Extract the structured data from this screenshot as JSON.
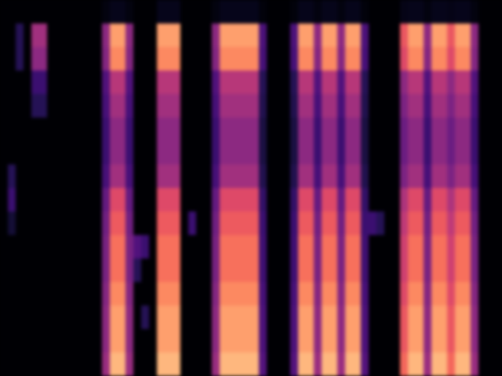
{
  "chart_data": {
    "type": "heatmap",
    "color": "magma",
    "tick_labels": false,
    "vlim": [
      0,
      1
    ],
    "values": [
      [
        0,
        0,
        0,
        0,
        0,
        0,
        0,
        0,
        0,
        0,
        0,
        0,
        0,
        0.03,
        0.05,
        0.05,
        0.03,
        0,
        0,
        0,
        0.05,
        0.05,
        0.05,
        0,
        0,
        0,
        0,
        0.03,
        0.05,
        0.05,
        0.05,
        0.05,
        0.05,
        0.02,
        0,
        0,
        0,
        0.02,
        0.05,
        0.05,
        0.03,
        0.05,
        0.05,
        0.03,
        0.05,
        0.05,
        0.02,
        0,
        0,
        0,
        0,
        0.04,
        0.05,
        0.05,
        0.03,
        0.05,
        0.05,
        0.04,
        0.05,
        0.05,
        0.03,
        0,
        0,
        0
      ],
      [
        0,
        0,
        0.15,
        0,
        0.45,
        0.45,
        0,
        0,
        0,
        0,
        0,
        0,
        0,
        0.4,
        0.8,
        0.8,
        0.4,
        0,
        0,
        0,
        0.8,
        0.8,
        0.8,
        0,
        0,
        0,
        0,
        0.4,
        0.8,
        0.8,
        0.8,
        0.8,
        0.8,
        0.24,
        0,
        0,
        0,
        0.24,
        0.8,
        0.8,
        0.4,
        0.8,
        0.8,
        0.4,
        0.8,
        0.8,
        0.24,
        0,
        0,
        0,
        0,
        0.64,
        0.8,
        0.8,
        0.4,
        0.8,
        0.8,
        0.64,
        0.8,
        0.8,
        0.4,
        0,
        0,
        0
      ],
      [
        0,
        0,
        0.15,
        0,
        0.4,
        0.4,
        0,
        0,
        0,
        0,
        0,
        0,
        0,
        0.38,
        0.75,
        0.75,
        0.38,
        0,
        0,
        0,
        0.75,
        0.75,
        0.75,
        0,
        0,
        0,
        0,
        0.38,
        0.75,
        0.75,
        0.75,
        0.75,
        0.75,
        0.23,
        0,
        0,
        0,
        0.23,
        0.75,
        0.75,
        0.38,
        0.75,
        0.75,
        0.38,
        0.75,
        0.75,
        0.23,
        0,
        0,
        0,
        0,
        0.6,
        0.75,
        0.75,
        0.38,
        0.75,
        0.75,
        0.6,
        0.75,
        0.75,
        0.38,
        0,
        0,
        0
      ],
      [
        0,
        0,
        0,
        0,
        0.2,
        0.2,
        0,
        0,
        0,
        0,
        0,
        0,
        0,
        0.25,
        0.5,
        0.5,
        0.25,
        0,
        0,
        0,
        0.5,
        0.5,
        0.5,
        0,
        0,
        0,
        0,
        0.25,
        0.5,
        0.5,
        0.5,
        0.5,
        0.5,
        0.15,
        0,
        0,
        0,
        0.15,
        0.5,
        0.5,
        0.25,
        0.5,
        0.5,
        0.25,
        0.5,
        0.5,
        0.15,
        0,
        0,
        0,
        0,
        0.4,
        0.5,
        0.5,
        0.25,
        0.5,
        0.5,
        0.4,
        0.5,
        0.5,
        0.25,
        0,
        0,
        0
      ],
      [
        0,
        0,
        0,
        0,
        0.15,
        0.15,
        0,
        0,
        0,
        0,
        0,
        0,
        0,
        0.23,
        0.45,
        0.45,
        0.23,
        0,
        0,
        0,
        0.45,
        0.45,
        0.45,
        0,
        0,
        0,
        0,
        0.23,
        0.45,
        0.45,
        0.45,
        0.45,
        0.45,
        0.14,
        0,
        0,
        0,
        0.14,
        0.45,
        0.45,
        0.23,
        0.45,
        0.45,
        0.23,
        0.45,
        0.45,
        0.14,
        0,
        0,
        0,
        0,
        0.36,
        0.45,
        0.45,
        0.23,
        0.45,
        0.45,
        0.36,
        0.45,
        0.45,
        0.23,
        0,
        0,
        0
      ],
      [
        0,
        0,
        0,
        0,
        0,
        0,
        0,
        0,
        0,
        0,
        0,
        0,
        0,
        0.2,
        0.4,
        0.4,
        0.2,
        0,
        0,
        0,
        0.4,
        0.4,
        0.4,
        0,
        0,
        0,
        0,
        0.2,
        0.4,
        0.4,
        0.4,
        0.4,
        0.4,
        0.12,
        0,
        0,
        0,
        0.12,
        0.4,
        0.4,
        0.2,
        0.4,
        0.4,
        0.2,
        0.4,
        0.4,
        0.12,
        0,
        0,
        0,
        0,
        0.32,
        0.4,
        0.4,
        0.2,
        0.4,
        0.4,
        0.32,
        0.4,
        0.4,
        0.2,
        0,
        0,
        0
      ],
      [
        0,
        0,
        0,
        0,
        0,
        0,
        0,
        0,
        0,
        0,
        0,
        0,
        0,
        0.2,
        0.4,
        0.4,
        0.2,
        0,
        0,
        0,
        0.4,
        0.4,
        0.4,
        0,
        0,
        0,
        0,
        0.2,
        0.4,
        0.4,
        0.4,
        0.4,
        0.4,
        0.12,
        0,
        0,
        0,
        0.12,
        0.4,
        0.4,
        0.2,
        0.4,
        0.4,
        0.2,
        0.4,
        0.4,
        0.12,
        0,
        0,
        0,
        0,
        0.32,
        0.4,
        0.4,
        0.2,
        0.4,
        0.4,
        0.32,
        0.4,
        0.4,
        0.2,
        0,
        0,
        0
      ],
      [
        0,
        0.15,
        0,
        0,
        0,
        0,
        0,
        0,
        0,
        0,
        0,
        0,
        0,
        0.23,
        0.45,
        0.45,
        0.23,
        0,
        0,
        0,
        0.45,
        0.45,
        0.45,
        0,
        0,
        0,
        0,
        0.23,
        0.45,
        0.45,
        0.45,
        0.45,
        0.45,
        0.14,
        0,
        0,
        0,
        0.14,
        0.45,
        0.45,
        0.23,
        0.45,
        0.45,
        0.23,
        0.45,
        0.45,
        0.14,
        0,
        0,
        0,
        0,
        0.36,
        0.45,
        0.45,
        0.23,
        0.45,
        0.45,
        0.36,
        0.45,
        0.45,
        0.23,
        0,
        0,
        0
      ],
      [
        0,
        0.2,
        0,
        0,
        0,
        0,
        0,
        0,
        0,
        0,
        0,
        0,
        0,
        0.3,
        0.6,
        0.6,
        0.3,
        0,
        0,
        0,
        0.6,
        0.6,
        0.6,
        0,
        0,
        0,
        0,
        0.3,
        0.6,
        0.6,
        0.6,
        0.6,
        0.6,
        0.18,
        0,
        0,
        0,
        0.18,
        0.6,
        0.6,
        0.3,
        0.6,
        0.6,
        0.3,
        0.6,
        0.6,
        0.18,
        0,
        0,
        0,
        0,
        0.48,
        0.6,
        0.6,
        0.3,
        0.6,
        0.6,
        0.48,
        0.6,
        0.6,
        0.3,
        0,
        0,
        0
      ],
      [
        0,
        0.1,
        0,
        0,
        0,
        0,
        0,
        0,
        0,
        0,
        0,
        0,
        0,
        0.33,
        0.65,
        0.65,
        0.33,
        0,
        0,
        0,
        0.65,
        0.65,
        0.65,
        0,
        0.2,
        0,
        0,
        0.33,
        0.65,
        0.65,
        0.65,
        0.65,
        0.65,
        0.2,
        0,
        0,
        0,
        0.2,
        0.65,
        0.65,
        0.33,
        0.65,
        0.65,
        0.33,
        0.65,
        0.65,
        0.2,
        0.2,
        0.15,
        0,
        0,
        0.52,
        0.65,
        0.65,
        0.33,
        0.65,
        0.65,
        0.52,
        0.65,
        0.65,
        0.33,
        0,
        0,
        0
      ],
      [
        0,
        0,
        0,
        0,
        0,
        0,
        0,
        0,
        0,
        0,
        0,
        0,
        0,
        0.35,
        0.7,
        0.7,
        0.35,
        0.25,
        0.2,
        0,
        0.7,
        0.7,
        0.7,
        0,
        0,
        0,
        0,
        0.35,
        0.7,
        0.7,
        0.7,
        0.7,
        0.7,
        0.21,
        0,
        0,
        0,
        0.21,
        0.7,
        0.7,
        0.35,
        0.7,
        0.7,
        0.35,
        0.7,
        0.7,
        0.21,
        0,
        0,
        0,
        0,
        0.56,
        0.7,
        0.7,
        0.35,
        0.7,
        0.7,
        0.56,
        0.7,
        0.7,
        0.35,
        0,
        0,
        0
      ],
      [
        0,
        0,
        0,
        0,
        0,
        0,
        0,
        0,
        0,
        0,
        0,
        0,
        0,
        0.35,
        0.7,
        0.7,
        0.35,
        0.15,
        0,
        0,
        0.7,
        0.7,
        0.7,
        0,
        0,
        0,
        0,
        0.35,
        0.7,
        0.7,
        0.7,
        0.7,
        0.7,
        0.21,
        0,
        0,
        0,
        0.21,
        0.7,
        0.7,
        0.35,
        0.7,
        0.7,
        0.35,
        0.7,
        0.7,
        0.21,
        0,
        0,
        0,
        0,
        0.56,
        0.7,
        0.7,
        0.35,
        0.7,
        0.7,
        0.56,
        0.7,
        0.7,
        0.35,
        0,
        0,
        0
      ],
      [
        0,
        0,
        0,
        0,
        0,
        0,
        0,
        0,
        0,
        0,
        0,
        0,
        0,
        0.38,
        0.75,
        0.75,
        0.38,
        0,
        0,
        0,
        0.75,
        0.75,
        0.75,
        0,
        0,
        0,
        0,
        0.38,
        0.75,
        0.75,
        0.75,
        0.75,
        0.75,
        0.23,
        0,
        0,
        0,
        0.23,
        0.75,
        0.75,
        0.38,
        0.75,
        0.75,
        0.38,
        0.75,
        0.75,
        0.23,
        0,
        0,
        0,
        0,
        0.6,
        0.75,
        0.75,
        0.38,
        0.75,
        0.75,
        0.6,
        0.75,
        0.75,
        0.38,
        0,
        0,
        0
      ],
      [
        0,
        0,
        0,
        0,
        0,
        0,
        0,
        0,
        0,
        0,
        0,
        0,
        0,
        0.4,
        0.8,
        0.8,
        0.4,
        0,
        0.15,
        0,
        0.8,
        0.8,
        0.8,
        0,
        0,
        0,
        0,
        0.4,
        0.8,
        0.8,
        0.8,
        0.8,
        0.8,
        0.24,
        0,
        0,
        0,
        0.24,
        0.8,
        0.8,
        0.4,
        0.8,
        0.8,
        0.4,
        0.8,
        0.8,
        0.24,
        0,
        0,
        0,
        0,
        0.64,
        0.8,
        0.8,
        0.4,
        0.8,
        0.8,
        0.64,
        0.8,
        0.8,
        0.4,
        0,
        0,
        0
      ],
      [
        0,
        0,
        0,
        0,
        0,
        0,
        0,
        0,
        0,
        0,
        0,
        0,
        0,
        0.4,
        0.8,
        0.8,
        0.4,
        0,
        0,
        0,
        0.8,
        0.8,
        0.8,
        0,
        0,
        0,
        0,
        0.4,
        0.8,
        0.8,
        0.8,
        0.8,
        0.8,
        0.24,
        0,
        0,
        0,
        0.24,
        0.8,
        0.8,
        0.4,
        0.8,
        0.8,
        0.4,
        0.8,
        0.8,
        0.24,
        0,
        0,
        0,
        0,
        0.64,
        0.8,
        0.8,
        0.4,
        0.8,
        0.8,
        0.64,
        0.8,
        0.8,
        0.4,
        0,
        0,
        0
      ],
      [
        0,
        0,
        0,
        0,
        0,
        0,
        0,
        0,
        0,
        0,
        0,
        0,
        0,
        0.43,
        0.85,
        0.85,
        0.43,
        0,
        0,
        0,
        0.85,
        0.85,
        0.85,
        0,
        0,
        0,
        0,
        0.43,
        0.85,
        0.85,
        0.85,
        0.85,
        0.85,
        0.26,
        0,
        0,
        0,
        0.26,
        0.85,
        0.85,
        0.43,
        0.85,
        0.85,
        0.43,
        0.85,
        0.85,
        0.26,
        0,
        0,
        0,
        0,
        0.68,
        0.85,
        0.85,
        0.43,
        0.85,
        0.85,
        0.68,
        0.85,
        0.85,
        0.43,
        0,
        0,
        0
      ]
    ]
  }
}
